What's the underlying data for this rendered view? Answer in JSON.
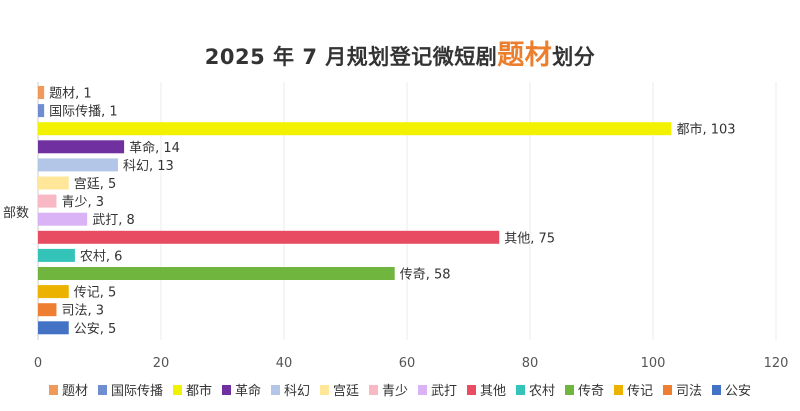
{
  "chart_data": {
    "type": "bar",
    "orientation": "horizontal",
    "title": {
      "before": "2025 年 7 月规划登记微短剧",
      "accent": "题材",
      "after": "划分"
    },
    "ylabel": "部数",
    "xlabel": "",
    "xlim": [
      0,
      120
    ],
    "xticks": [
      0,
      20,
      40,
      60,
      80,
      100,
      120
    ],
    "grid": true,
    "legend_position": "bottom",
    "categories": [
      "题材",
      "国际传播",
      "都市",
      "革命",
      "科幻",
      "宫廷",
      "青少",
      "武打",
      "其他",
      "农村",
      "传奇",
      "传记",
      "司法",
      "公安"
    ],
    "values": [
      1,
      1,
      103,
      14,
      13,
      5,
      3,
      8,
      75,
      6,
      58,
      5,
      3,
      5
    ],
    "colors": [
      "#ef9a5b",
      "#6f8ed2",
      "#f2f200",
      "#7030a0",
      "#b4c6e7",
      "#ffe699",
      "#f8b9c4",
      "#d9b3f5",
      "#e84c63",
      "#33c3b8",
      "#70b63e",
      "#ebb300",
      "#ef7f30",
      "#4472c4"
    ]
  }
}
